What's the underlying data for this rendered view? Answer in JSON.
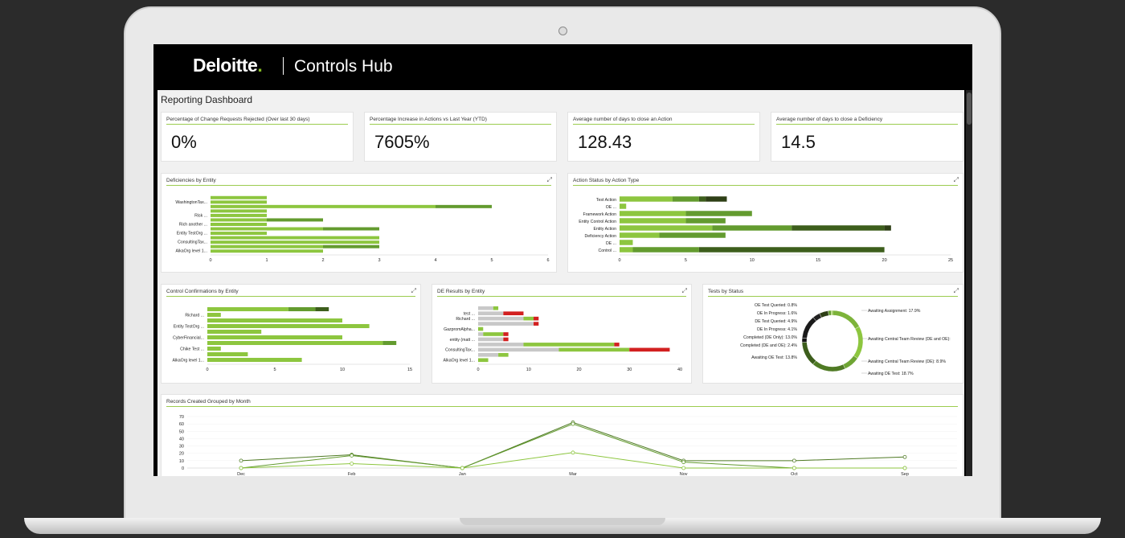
{
  "header": {
    "brand": "Deloitte",
    "brand_dot": ".",
    "app_name": "Controls Hub"
  },
  "page": {
    "title": "Reporting Dashboard"
  },
  "colors": {
    "light": "#8dc63f",
    "mid": "#639b2f",
    "dark": "#3d5e1c",
    "darkest": "#2e3f16",
    "gray": "#c8c8c8",
    "red": "#d22020",
    "header": "#000000"
  },
  "kpis": [
    {
      "title": "Percentage of Change Requests Rejected (Over last 30 days)",
      "value": "0%"
    },
    {
      "title": "Percentage Increase in Actions vs Last Year (YTD)",
      "value": "7605%"
    },
    {
      "title": "Average number of days to close an Action",
      "value": "128.43"
    },
    {
      "title": "Average number of days to close a Deficiency",
      "value": "14.5"
    }
  ],
  "chart_data": [
    {
      "id": "deficiencies",
      "title": "Deficiencies by Entity",
      "type": "bar",
      "orientation": "horizontal",
      "stacked": true,
      "xlim": [
        0,
        6
      ],
      "xticks": [
        "0",
        "1",
        "2",
        "3",
        "4",
        "5",
        "6"
      ],
      "labels": [
        "WashingtonTax...",
        "Risk ...",
        "Rich another ...",
        "Entity TestOrg ...",
        "ConsultingTax...",
        "AlkaOrg level 1..."
      ],
      "rows": [
        {
          "segments": [
            1
          ]
        },
        {
          "label": "WashingtonTax...",
          "segments": [
            1
          ]
        },
        {
          "segments": [
            4,
            1
          ]
        },
        {
          "segments": [
            1
          ]
        },
        {
          "label": "Risk ...",
          "segments": [
            1
          ]
        },
        {
          "segments": [
            1,
            1
          ]
        },
        {
          "label": "Rich another ...",
          "segments": [
            1
          ]
        },
        {
          "segments": [
            2,
            1
          ]
        },
        {
          "label": "Entity TestOrg ...",
          "segments": [
            1
          ]
        },
        {
          "segments": [
            3
          ]
        },
        {
          "label": "ConsultingTax...",
          "segments": [
            3
          ]
        },
        {
          "segments": [
            2,
            1
          ]
        },
        {
          "label": "AlkaOrg level 1...",
          "segments": [
            2
          ]
        }
      ]
    },
    {
      "id": "action-status",
      "title": "Action Status by Action Type",
      "type": "bar",
      "orientation": "horizontal",
      "stacked": true,
      "xlim": [
        0,
        25
      ],
      "xticks": [
        "0",
        "5",
        "10",
        "15",
        "20",
        "25"
      ],
      "labels": [
        "Test Action",
        "OE ...",
        "Framework Action",
        "Entity Control Action",
        "Entity Action",
        "Deficiency Action",
        "DE ...",
        "Control ..."
      ],
      "rows": [
        {
          "label": "Test Action",
          "segments": [
            4,
            2,
            0.5,
            1.6
          ]
        },
        {
          "label": "OE ...",
          "segments": [
            0.5
          ]
        },
        {
          "label": "Framework Action",
          "segments": [
            5,
            5
          ]
        },
        {
          "label": "Entity Control Action",
          "segments": [
            5,
            3
          ]
        },
        {
          "label": "Entity Action",
          "segments": [
            7,
            6,
            7,
            0.5
          ]
        },
        {
          "label": "Deficiency Action",
          "segments": [
            3,
            5
          ]
        },
        {
          "label": "DE ...",
          "segments": [
            1
          ]
        },
        {
          "label": "Control ...",
          "segments": [
            1,
            5,
            14
          ]
        }
      ]
    },
    {
      "id": "control-confirmations",
      "title": "Control Confirmations by Entity",
      "type": "bar",
      "orientation": "horizontal",
      "stacked": true,
      "xlim": [
        0,
        15
      ],
      "xticks": [
        "0",
        "5",
        "10",
        "15"
      ],
      "labels": [
        "Richard ...",
        "Entity TestOrg ...",
        "CyberFinancial...",
        "Chike Test ...",
        "AlkaOrg level 1..."
      ],
      "rows": [
        {
          "segments": [
            6,
            2,
            1
          ]
        },
        {
          "label": "Richard ...",
          "segments": [
            1
          ]
        },
        {
          "segments": [
            10
          ]
        },
        {
          "label": "Entity TestOrg ...",
          "segments": [
            12
          ]
        },
        {
          "segments": [
            4
          ]
        },
        {
          "label": "CyberFinancial...",
          "segments": [
            10
          ]
        },
        {
          "segments": [
            13,
            1
          ]
        },
        {
          "label": "Chike Test ...",
          "segments": [
            1
          ]
        },
        {
          "segments": [
            3
          ]
        },
        {
          "label": "AlkaOrg level 1...",
          "segments": [
            7
          ]
        }
      ]
    },
    {
      "id": "de-results",
      "title": "DE Results by Entity",
      "type": "bar",
      "orientation": "horizontal",
      "stacked": true,
      "xlim": [
        0,
        40
      ],
      "xticks": [
        "0",
        "10",
        "20",
        "30",
        "40"
      ],
      "labels": [
        "test ...",
        "Richard ...",
        "GazpromAlpha...",
        "entity (matt ...",
        "ConsultingTax...",
        "AlkaOrg level 1..."
      ],
      "rows": [
        {
          "segments": [
            3,
            1
          ]
        },
        {
          "label": "test ...",
          "segments": [
            5,
            4
          ]
        },
        {
          "label": "Richard ...",
          "segments": [
            9,
            2,
            1
          ]
        },
        {
          "segments": [
            11,
            1
          ]
        },
        {
          "label": "GazpromAlpha...",
          "segments": [
            1
          ]
        },
        {
          "segments": [
            1,
            4,
            1
          ]
        },
        {
          "label": "entity (matt ...",
          "segments": [
            5,
            1
          ]
        },
        {
          "segments": [
            9,
            18,
            1
          ]
        },
        {
          "label": "ConsultingTax...",
          "segments": [
            16,
            14,
            8
          ]
        },
        {
          "segments": [
            4,
            2
          ]
        },
        {
          "label": "AlkaOrg level 1...",
          "segments": [
            2
          ]
        }
      ],
      "row_colors": [
        [
          "gray",
          "light"
        ],
        [
          "gray",
          "red"
        ],
        [
          "gray",
          "light",
          "red"
        ],
        [
          "gray",
          "red"
        ],
        [
          "light"
        ],
        [
          "gray",
          "light",
          "red"
        ],
        [
          "gray",
          "red"
        ],
        [
          "gray",
          "light",
          "red"
        ],
        [
          "gray",
          "light",
          "red"
        ],
        [
          "gray",
          "light"
        ],
        [
          "light"
        ]
      ]
    },
    {
      "id": "tests-status",
      "title": "Tests by Status",
      "type": "pie",
      "donut": true,
      "slices": [
        {
          "label": "Awaiting Assignment: 17.9%",
          "value": 17.9
        },
        {
          "label": "Awaiting Central Team Review (DE and OE):",
          "value": 18.3
        },
        {
          "label": "Awaiting Central Team Review (DE): 8.9%",
          "value": 8.9
        },
        {
          "label": "Awaiting DE Test: 18.7%",
          "value": 18.7
        },
        {
          "label": "Awaiting OE Test: 13.8%",
          "value": 13.8
        },
        {
          "label": "Completed (DE and OE): 2.4%",
          "value": 2.4
        },
        {
          "label": "Completed (DE Only): 13.0%",
          "value": 13.0
        },
        {
          "label": "DE In Progress: 4.1%",
          "value": 4.1
        },
        {
          "label": "DE Test Queried: 4.9%",
          "value": 4.9
        },
        {
          "label": "OE In Progress: 1.6%",
          "value": 1.6
        },
        {
          "label": "OE Test Queried: 0.8%",
          "value": 0.8
        }
      ],
      "slice_colors": [
        "#7db33a",
        "#8dc63f",
        "#6fa534",
        "#4f7a24",
        "#3d5e1c",
        "#111111",
        "#1a1a1a",
        "#222222",
        "#2e3f16",
        "#639b2f",
        "#9ccc4f"
      ]
    },
    {
      "id": "records-by-month",
      "title": "Records Created Grouped by Month",
      "type": "line",
      "categories": [
        "Dec",
        "Feb",
        "Jan",
        "Mar",
        "Nov",
        "Oct",
        "Sep"
      ],
      "ylim": [
        0,
        70
      ],
      "yticks": [
        "0",
        "10",
        "20",
        "30",
        "40",
        "50",
        "60",
        "70"
      ],
      "series": [
        {
          "values": [
            10,
            18,
            0,
            62,
            10,
            10,
            15
          ]
        },
        {
          "values": [
            0,
            17,
            0,
            60,
            8,
            0,
            0
          ]
        },
        {
          "values": [
            0,
            6,
            0,
            21,
            0,
            0,
            0
          ]
        }
      ],
      "series_colors": [
        "#4f7a24",
        "#639b2f",
        "#8dc63f"
      ]
    }
  ]
}
